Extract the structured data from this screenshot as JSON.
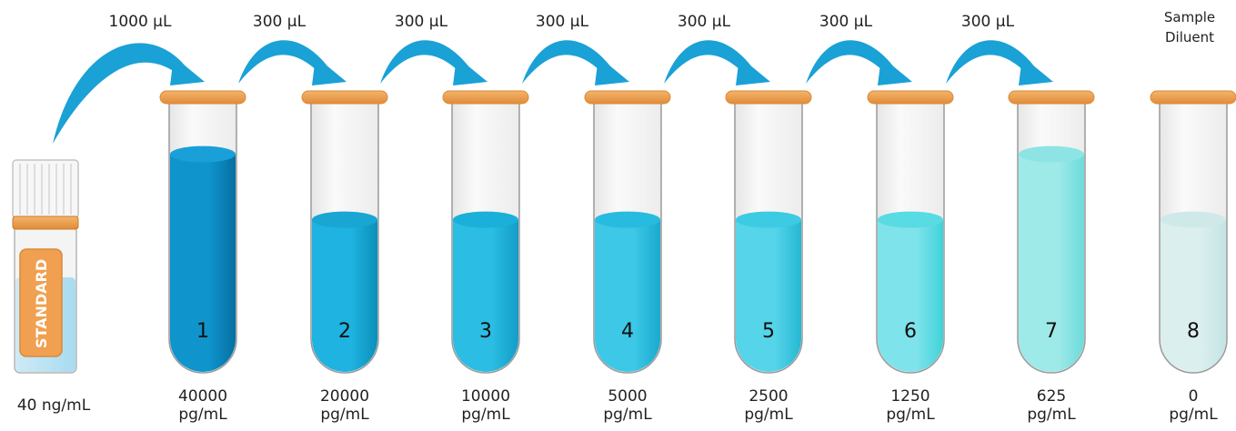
{
  "standard": {
    "vial_label": "STANDARD",
    "concentration": "40 ng/mL"
  },
  "transfers": [
    "1000 µL",
    "300 µL",
    "300 µL",
    "300 µL",
    "300 µL",
    "300 µL",
    "300 µL"
  ],
  "diluent": {
    "line1": "Sample",
    "line2": "Diluent"
  },
  "tubes": [
    {
      "number": "1",
      "value": "40000",
      "unit": "pg/mL",
      "fill": 0.8,
      "color": "#0f94cc",
      "dark": "#066fa1",
      "top": "#1aa0d8"
    },
    {
      "number": "2",
      "value": "20000",
      "unit": "pg/mL",
      "fill": 0.55,
      "color": "#1eb3e0",
      "dark": "#0b8fba",
      "top": "#19a6d3"
    },
    {
      "number": "3",
      "value": "10000",
      "unit": "pg/mL",
      "fill": 0.55,
      "color": "#2bbde3",
      "dark": "#129dc6",
      "top": "#1ab0d9"
    },
    {
      "number": "4",
      "value": "5000",
      "unit": "pg/mL",
      "fill": 0.55,
      "color": "#3cc8e6",
      "dark": "#1aa9cf",
      "top": "#27bbdf"
    },
    {
      "number": "5",
      "value": "2500",
      "unit": "pg/mL",
      "fill": 0.55,
      "color": "#55d4ea",
      "dark": "#26b7d3",
      "top": "#3ccbe3"
    },
    {
      "number": "6",
      "value": "1250",
      "unit": "pg/mL",
      "fill": 0.55,
      "color": "#7ee3ea",
      "dark": "#3fd3d9",
      "top": "#58dbe3"
    },
    {
      "number": "7",
      "value": "625",
      "unit": "pg/mL",
      "fill": 0.8,
      "color": "#9eeae9",
      "dark": "#6ddbdb",
      "top": "#8ee4e4"
    },
    {
      "number": "8",
      "value": "0",
      "unit": "pg/mL",
      "fill": 0.55,
      "color": "#dcefef",
      "dark": "#c4e3e3",
      "top": "#cfe9e9"
    }
  ],
  "colors": {
    "cap": "#f0a050",
    "cap_dark": "#d98a35",
    "arrow": "#1aa1d6",
    "glass_edge": "#9a9a9a"
  }
}
